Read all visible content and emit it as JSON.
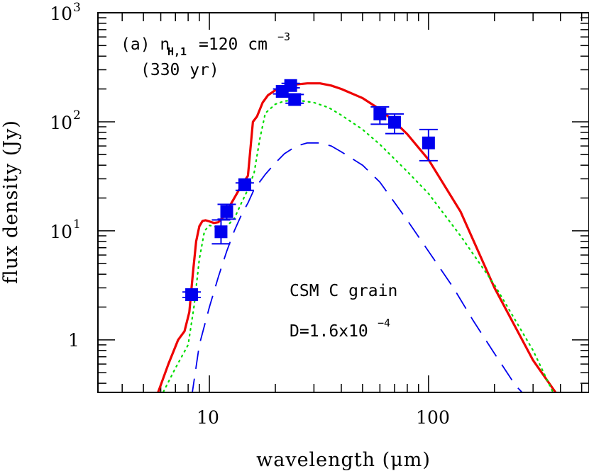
{
  "chart_data": {
    "type": "scatter",
    "title": "",
    "xlabel": "wavelength (μm)",
    "ylabel": "flux density (Jy)",
    "xscale": "log",
    "yscale": "log",
    "xlim": [
      3.1,
      540
    ],
    "ylim": [
      0.33,
      1000
    ],
    "x_tick_labels": [
      "10",
      "100"
    ],
    "y_tick_labels": [
      "1",
      "10",
      "10",
      "10"
    ],
    "y_tick_exponents": [
      "",
      "1",
      "2",
      "3"
    ],
    "annotations": {
      "panel_label": "(a) n",
      "panel_sub": "H,1",
      "panel_value": "=120 cm",
      "panel_exp": "−3",
      "age": "(330 yr)",
      "grain_label": "CSM C grain",
      "d_label": "D=1.6x10",
      "d_exp": "−4"
    },
    "observations": [
      {
        "x": 8.3,
        "y": 2.6,
        "yerr_low": 2.45,
        "yerr_high": 2.75,
        "xerr": [
          7.8,
          8.8
        ]
      },
      {
        "x": 11.3,
        "y": 9.8,
        "yerr_low": 7.6,
        "yerr_high": 12.6
      },
      {
        "x": 12.0,
        "y": 15.0,
        "yerr_low": 12.8,
        "yerr_high": 17.5
      },
      {
        "x": 14.5,
        "y": 26.5,
        "yerr_low": 23.5,
        "yerr_high": 27.5
      },
      {
        "x": 21.5,
        "y": 190,
        "yerr_low": 180,
        "yerr_high": 200
      },
      {
        "x": 23.5,
        "y": 215,
        "yerr_low": 205,
        "yerr_high": 225
      },
      {
        "x": 24.5,
        "y": 160,
        "yerr_low": 148,
        "yerr_high": 178
      },
      {
        "x": 60,
        "y": 118,
        "yerr_low": 95,
        "yerr_high": 137
      },
      {
        "x": 70,
        "y": 99,
        "yerr_low": 78,
        "yerr_high": 118
      },
      {
        "x": 100,
        "y": 64,
        "yerr_low": 44,
        "yerr_high": 85
      }
    ],
    "series": [
      {
        "style": "solid",
        "color": "#ee0000",
        "x": [
          5.8,
          6.5,
          7.2,
          7.7,
          8.1,
          8.4,
          8.7,
          9.0,
          9.3,
          9.6,
          10.0,
          10.5,
          11.0,
          11.6,
          12.2,
          13.0,
          14.0,
          15.0,
          15.8,
          16.5,
          17.5,
          18.5,
          20,
          22,
          25,
          28,
          32,
          36,
          40,
          50,
          60,
          70,
          80,
          100,
          140,
          200,
          300,
          380
        ],
        "y": [
          0.32,
          0.6,
          1.0,
          1.2,
          1.8,
          4.0,
          8.0,
          11.0,
          12.3,
          12.5,
          12.2,
          11.8,
          12.0,
          13.5,
          16.0,
          20.0,
          26.0,
          32.0,
          100,
          112,
          150,
          175,
          195,
          210,
          220,
          225,
          225,
          215,
          200,
          165,
          130,
          100,
          77,
          45,
          15,
          3.0,
          0.65,
          0.33
        ]
      },
      {
        "style": "dotted",
        "color": "#00dd00",
        "x": [
          6.0,
          7.0,
          8.0,
          8.5,
          9.0,
          9.5,
          10.0,
          10.5,
          11.0,
          11.5,
          12.0,
          13.0,
          14.0,
          15.0,
          16.0,
          17.0,
          18.0,
          20,
          22,
          25,
          30,
          35,
          40,
          50,
          60,
          80,
          100,
          140,
          200,
          300,
          370
        ],
        "y": [
          0.3,
          0.55,
          0.9,
          2.0,
          5.5,
          10.0,
          11.2,
          11.0,
          10.5,
          10.5,
          11.0,
          13.0,
          18.0,
          24.0,
          34.0,
          70.0,
          120,
          145,
          155,
          158,
          150,
          135,
          115,
          85,
          62,
          35,
          22,
          9.0,
          3.2,
          0.8,
          0.33
        ]
      },
      {
        "style": "dashed",
        "color": "#0000ee",
        "x": [
          8.3,
          9.0,
          10.0,
          11.0,
          12.0,
          13.0,
          14.0,
          15.0,
          16.0,
          18.0,
          20,
          22,
          25,
          28,
          32,
          36,
          40,
          50,
          60,
          80,
          100,
          130,
          160,
          200,
          250,
          280
        ],
        "y": [
          0.3,
          0.9,
          2.0,
          3.8,
          6.5,
          10.0,
          14.0,
          18.0,
          24.0,
          33.0,
          42.0,
          51.0,
          60.0,
          64.0,
          64.0,
          60.0,
          53.0,
          40.0,
          28.0,
          12.5,
          6.5,
          3.0,
          1.5,
          0.75,
          0.38,
          0.3
        ]
      }
    ]
  }
}
